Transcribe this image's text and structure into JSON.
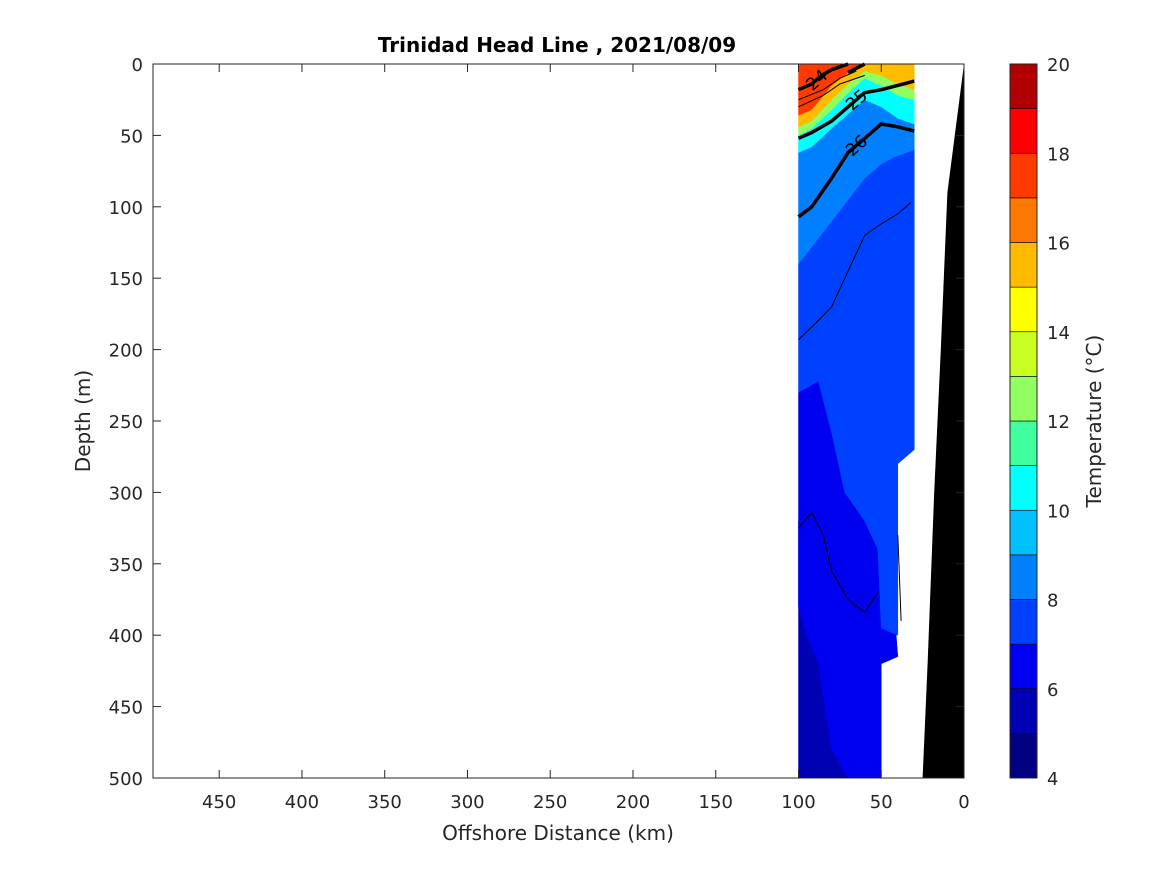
{
  "chart_data": {
    "type": "contour",
    "title": "Trinidad Head Line , 2021/08/09",
    "xlabel": "Offshore Distance (km)",
    "ylabel": "Depth (m)",
    "colorbar_label": "Temperature (°C)",
    "xlim": [
      490,
      0
    ],
    "ylim": [
      500,
      0
    ],
    "x_reversed": true,
    "y_reversed": true,
    "x_ticks": [
      450,
      400,
      350,
      300,
      250,
      200,
      150,
      100,
      50,
      0
    ],
    "y_ticks": [
      0,
      50,
      100,
      150,
      200,
      250,
      300,
      350,
      400,
      450,
      500
    ],
    "colorbar_range": [
      4,
      20
    ],
    "colorbar_ticks": [
      4,
      6,
      8,
      10,
      12,
      14,
      16,
      18,
      20
    ],
    "colorbar_levels": [
      {
        "from": 4,
        "to": 5,
        "color": "#000080"
      },
      {
        "from": 5,
        "to": 6,
        "color": "#0000b4"
      },
      {
        "from": 6,
        "to": 7,
        "color": "#0000f0"
      },
      {
        "from": 7,
        "to": 8,
        "color": "#0040ff"
      },
      {
        "from": 8,
        "to": 9,
        "color": "#0080ff"
      },
      {
        "from": 9,
        "to": 10,
        "color": "#00c0ff"
      },
      {
        "from": 10,
        "to": 11,
        "color": "#00ffff"
      },
      {
        "from": 11,
        "to": 12,
        "color": "#40ffa0"
      },
      {
        "from": 12,
        "to": 13,
        "color": "#90ff60"
      },
      {
        "from": 13,
        "to": 14,
        "color": "#c8ff20"
      },
      {
        "from": 14,
        "to": 15,
        "color": "#ffff00"
      },
      {
        "from": 15,
        "to": 16,
        "color": "#ffbb00"
      },
      {
        "from": 16,
        "to": 17,
        "color": "#ff7800"
      },
      {
        "from": 17,
        "to": 18,
        "color": "#ff3a00"
      },
      {
        "from": 18,
        "to": 19,
        "color": "#ff0000"
      },
      {
        "from": 19,
        "to": 20,
        "color": "#b00000"
      }
    ],
    "temperature_bands": [
      {
        "temp": 5.5,
        "color": "#0000b4",
        "polygon": [
          [
            100,
            320
          ],
          [
            92,
            314
          ],
          [
            80,
            338
          ],
          [
            70,
            362
          ],
          [
            60,
            385
          ],
          [
            52,
            370
          ],
          [
            50,
            405
          ],
          [
            50,
            500
          ],
          [
            100,
            500
          ]
        ]
      },
      {
        "temp": 6.5,
        "color": "#0000f0",
        "polygon": [
          [
            100,
            230
          ],
          [
            88,
            222
          ],
          [
            80,
            258
          ],
          [
            72,
            300
          ],
          [
            60,
            320
          ],
          [
            50,
            330
          ],
          [
            45,
            340
          ],
          [
            40,
            415
          ],
          [
            50,
            420
          ],
          [
            50,
            500
          ],
          [
            70,
            500
          ],
          [
            80,
            480
          ],
          [
            88,
            420
          ],
          [
            95,
            400
          ],
          [
            100,
            380
          ]
        ]
      },
      {
        "temp": 7.5,
        "color": "#0040ff",
        "polygon": [
          [
            100,
            140
          ],
          [
            92,
            128
          ],
          [
            80,
            110
          ],
          [
            70,
            95
          ],
          [
            60,
            80
          ],
          [
            50,
            70
          ],
          [
            42,
            65
          ],
          [
            30,
            60
          ],
          [
            30,
            270
          ],
          [
            40,
            280
          ],
          [
            40,
            400
          ],
          [
            50,
            395
          ],
          [
            52,
            340
          ],
          [
            60,
            320
          ],
          [
            72,
            300
          ],
          [
            80,
            258
          ],
          [
            88,
            222
          ],
          [
            100,
            230
          ]
        ]
      },
      {
        "temp": 8.5,
        "color": "#0080ff",
        "polygon": [
          [
            100,
            62
          ],
          [
            92,
            58
          ],
          [
            80,
            45
          ],
          [
            70,
            35
          ],
          [
            60,
            25
          ],
          [
            50,
            30
          ],
          [
            40,
            38
          ],
          [
            30,
            42
          ],
          [
            30,
            60
          ],
          [
            42,
            65
          ],
          [
            50,
            70
          ],
          [
            60,
            80
          ],
          [
            70,
            95
          ],
          [
            80,
            110
          ],
          [
            92,
            128
          ],
          [
            100,
            140
          ]
        ]
      },
      {
        "temp": 10.5,
        "color": "#00ffff",
        "polygon": [
          [
            100,
            50
          ],
          [
            92,
            45
          ],
          [
            80,
            32
          ],
          [
            70,
            20
          ],
          [
            60,
            10
          ],
          [
            50,
            15
          ],
          [
            40,
            22
          ],
          [
            30,
            25
          ],
          [
            30,
            42
          ],
          [
            40,
            38
          ],
          [
            50,
            30
          ],
          [
            60,
            25
          ],
          [
            70,
            35
          ],
          [
            80,
            45
          ],
          [
            92,
            58
          ],
          [
            100,
            62
          ]
        ]
      },
      {
        "temp": 12.5,
        "color": "#90ff60",
        "polygon": [
          [
            100,
            44
          ],
          [
            92,
            40
          ],
          [
            80,
            25
          ],
          [
            70,
            14
          ],
          [
            60,
            5
          ],
          [
            50,
            8
          ],
          [
            40,
            14
          ],
          [
            30,
            18
          ],
          [
            30,
            25
          ],
          [
            40,
            22
          ],
          [
            50,
            15
          ],
          [
            60,
            10
          ],
          [
            70,
            20
          ],
          [
            80,
            32
          ],
          [
            92,
            45
          ],
          [
            100,
            50
          ]
        ]
      },
      {
        "temp": 15.5,
        "color": "#ffbb00",
        "polygon": [
          [
            100,
            36
          ],
          [
            92,
            32
          ],
          [
            80,
            15
          ],
          [
            70,
            6
          ],
          [
            60,
            0
          ],
          [
            30,
            0
          ],
          [
            30,
            18
          ],
          [
            40,
            14
          ],
          [
            50,
            8
          ],
          [
            60,
            5
          ],
          [
            70,
            14
          ],
          [
            80,
            25
          ],
          [
            92,
            40
          ],
          [
            100,
            44
          ]
        ]
      },
      {
        "temp": 17.5,
        "color": "#ff3a00",
        "polygon": [
          [
            100,
            0
          ],
          [
            60,
            0
          ],
          [
            70,
            6
          ],
          [
            80,
            15
          ],
          [
            92,
            32
          ],
          [
            100,
            36
          ]
        ]
      }
    ],
    "contours": [
      {
        "label": "24",
        "style": "bold",
        "points": [
          [
            100,
            18
          ],
          [
            92,
            14
          ],
          [
            86,
            8
          ],
          [
            80,
            4
          ],
          [
            70,
            0
          ]
        ]
      },
      {
        "label": "",
        "style": "bold",
        "points": [
          [
            70,
            6
          ],
          [
            60,
            0
          ]
        ]
      },
      {
        "label": "25",
        "style": "bold",
        "points": [
          [
            100,
            52
          ],
          [
            92,
            48
          ],
          [
            80,
            40
          ],
          [
            70,
            30
          ],
          [
            60,
            20
          ],
          [
            50,
            18
          ],
          [
            40,
            15
          ],
          [
            30,
            12
          ]
        ]
      },
      {
        "label": "26",
        "style": "bold",
        "points": [
          [
            100,
            107
          ],
          [
            92,
            100
          ],
          [
            80,
            80
          ],
          [
            70,
            62
          ],
          [
            60,
            52
          ],
          [
            50,
            42
          ],
          [
            40,
            44
          ],
          [
            30,
            47
          ]
        ]
      },
      {
        "label": "",
        "style": "thin",
        "points": [
          [
            100,
            193
          ],
          [
            90,
            182
          ],
          [
            80,
            170
          ],
          [
            70,
            145
          ],
          [
            60,
            120
          ],
          [
            50,
            112
          ],
          [
            40,
            105
          ],
          [
            32,
            97
          ]
        ]
      },
      {
        "label": "",
        "style": "thin",
        "points": [
          [
            100,
            325
          ],
          [
            92,
            314
          ],
          [
            85,
            330
          ],
          [
            80,
            355
          ],
          [
            70,
            375
          ],
          [
            60,
            384
          ],
          [
            52,
            370
          ]
        ]
      },
      {
        "label": "",
        "style": "thin",
        "points": [
          [
            40,
            330
          ],
          [
            39,
            360
          ],
          [
            38,
            390
          ]
        ]
      },
      {
        "label": "",
        "style": "thin",
        "points": [
          [
            100,
            25
          ],
          [
            85,
            18
          ],
          [
            75,
            10
          ],
          [
            65,
            5
          ]
        ]
      },
      {
        "label": "",
        "style": "thin",
        "points": [
          [
            100,
            30
          ],
          [
            85,
            22
          ],
          [
            75,
            14
          ],
          [
            60,
            8
          ]
        ]
      }
    ],
    "data_boundary": [
      [
        100,
        0
      ],
      [
        30,
        0
      ],
      [
        30,
        270
      ],
      [
        40,
        280
      ],
      [
        40,
        400
      ],
      [
        50,
        395
      ],
      [
        50,
        500
      ],
      [
        100,
        500
      ]
    ],
    "bathymetry": {
      "color": "#000000",
      "points": [
        [
          0,
          0
        ],
        [
          10,
          90
        ],
        [
          14,
          200
        ],
        [
          18,
          300
        ],
        [
          22,
          420
        ],
        [
          25,
          500
        ],
        [
          0,
          500
        ]
      ]
    }
  }
}
